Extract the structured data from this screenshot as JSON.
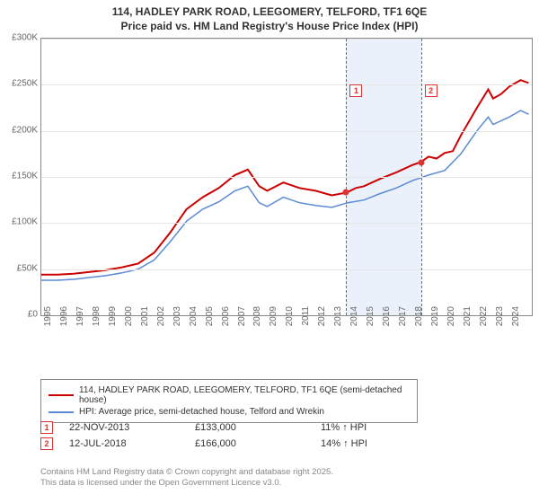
{
  "title_line1": "114, HADLEY PARK ROAD, LEEGOMERY, TELFORD, TF1 6QE",
  "title_line2": "Price paid vs. HM Land Registry's House Price Index (HPI)",
  "chart": {
    "type": "line",
    "xlim": [
      1995,
      2025.4
    ],
    "ylim": [
      0,
      300000
    ],
    "ytick_step": 50000,
    "yticks": [
      "£0",
      "£50K",
      "£100K",
      "£150K",
      "£200K",
      "£250K",
      "£300K"
    ],
    "xticks": [
      1995,
      1996,
      1997,
      1998,
      1999,
      2000,
      2001,
      2002,
      2003,
      2004,
      2005,
      2006,
      2007,
      2008,
      2009,
      2010,
      2011,
      2012,
      2013,
      2014,
      2015,
      2016,
      2017,
      2018,
      2019,
      2020,
      2021,
      2022,
      2023,
      2024
    ],
    "background_color": "#ffffff",
    "grid_color": "#e6e6e6",
    "band": {
      "start": 2013.9,
      "end": 2018.53,
      "color": "#eaf1fb"
    },
    "series": [
      {
        "name": "price_paid",
        "label": "114, HADLEY PARK ROAD, LEEGOMERY, TELFORD, TF1 6QE (semi-detached house)",
        "color": "#cc0000",
        "line_width": 2,
        "data": [
          [
            1995,
            44000
          ],
          [
            1996,
            44000
          ],
          [
            1997,
            45000
          ],
          [
            1998,
            47000
          ],
          [
            1999,
            49000
          ],
          [
            2000,
            52000
          ],
          [
            2001,
            56000
          ],
          [
            2002,
            68000
          ],
          [
            2003,
            90000
          ],
          [
            2004,
            115000
          ],
          [
            2005,
            128000
          ],
          [
            2006,
            138000
          ],
          [
            2007,
            152000
          ],
          [
            2007.8,
            158000
          ],
          [
            2008.5,
            140000
          ],
          [
            2009,
            135000
          ],
          [
            2010,
            144000
          ],
          [
            2011,
            138000
          ],
          [
            2012,
            135000
          ],
          [
            2013,
            130000
          ],
          [
            2013.9,
            133000
          ],
          [
            2014.5,
            138000
          ],
          [
            2015,
            140000
          ],
          [
            2016,
            148000
          ],
          [
            2017,
            155000
          ],
          [
            2018,
            163000
          ],
          [
            2018.5,
            166000
          ],
          [
            2019,
            172000
          ],
          [
            2019.5,
            170000
          ],
          [
            2020,
            176000
          ],
          [
            2020.5,
            178000
          ],
          [
            2021,
            195000
          ],
          [
            2022,
            225000
          ],
          [
            2022.7,
            245000
          ],
          [
            2023,
            235000
          ],
          [
            2023.5,
            240000
          ],
          [
            2024,
            248000
          ],
          [
            2024.7,
            255000
          ],
          [
            2025.2,
            252000
          ]
        ]
      },
      {
        "name": "hpi",
        "label": "HPI: Average price, semi-detached house, Telford and Wrekin",
        "color": "#5b8bd4",
        "line_width": 1.5,
        "data": [
          [
            1995,
            38000
          ],
          [
            1996,
            38000
          ],
          [
            1997,
            39000
          ],
          [
            1998,
            41000
          ],
          [
            1999,
            43000
          ],
          [
            2000,
            46000
          ],
          [
            2001,
            50000
          ],
          [
            2002,
            60000
          ],
          [
            2003,
            80000
          ],
          [
            2004,
            102000
          ],
          [
            2005,
            115000
          ],
          [
            2006,
            123000
          ],
          [
            2007,
            135000
          ],
          [
            2007.8,
            140000
          ],
          [
            2008.5,
            122000
          ],
          [
            2009,
            118000
          ],
          [
            2010,
            128000
          ],
          [
            2011,
            122000
          ],
          [
            2012,
            119000
          ],
          [
            2013,
            117000
          ],
          [
            2014,
            122000
          ],
          [
            2015,
            125000
          ],
          [
            2016,
            132000
          ],
          [
            2017,
            138000
          ],
          [
            2018,
            146000
          ],
          [
            2019,
            152000
          ],
          [
            2020,
            157000
          ],
          [
            2021,
            175000
          ],
          [
            2022,
            200000
          ],
          [
            2022.7,
            215000
          ],
          [
            2023,
            207000
          ],
          [
            2024,
            215000
          ],
          [
            2024.7,
            222000
          ],
          [
            2025.2,
            218000
          ]
        ]
      }
    ],
    "markers": [
      {
        "id": "1",
        "x": 2013.9,
        "y": 133000,
        "label_y": 250000
      },
      {
        "id": "2",
        "x": 2018.53,
        "y": 166000,
        "label_y": 250000
      }
    ]
  },
  "sales": [
    {
      "id": "1",
      "date": "22-NOV-2013",
      "price": "£133,000",
      "delta": "11% ↑ HPI"
    },
    {
      "id": "2",
      "date": "12-JUL-2018",
      "price": "£166,000",
      "delta": "14% ↑ HPI"
    }
  ],
  "footer_line1": "Contains HM Land Registry data © Crown copyright and database right 2025.",
  "footer_line2": "This data is licensed under the Open Government Licence v3.0."
}
